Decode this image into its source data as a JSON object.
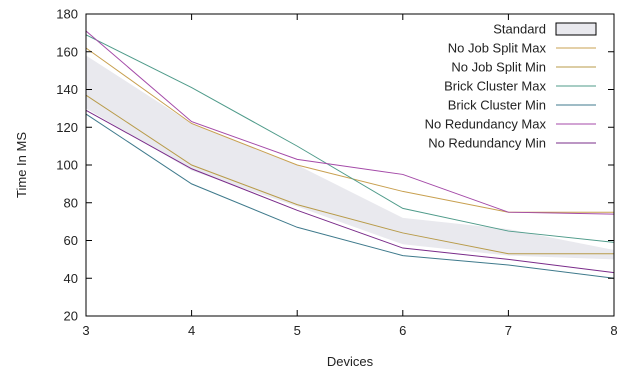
{
  "chart_data": {
    "type": "area",
    "xlabel": "Devices",
    "ylabel": "Time In MS",
    "x": [
      3,
      4,
      5,
      6,
      7,
      8
    ],
    "xlim": [
      3,
      8
    ],
    "ylim": [
      20,
      180
    ],
    "xticks": [
      3,
      4,
      5,
      6,
      7,
      8
    ],
    "yticks": [
      20,
      40,
      60,
      80,
      100,
      120,
      140,
      160,
      180
    ],
    "grid": false,
    "legend_position": "top-right",
    "band": {
      "name": "Standard",
      "upper": [
        158,
        122,
        100,
        72,
        66,
        55
      ],
      "lower": [
        130,
        97,
        78,
        58,
        52,
        50
      ],
      "color": "#e9e9ee"
    },
    "series": [
      {
        "name": "No Job Split Max",
        "color": "#c8a050",
        "values": [
          162,
          122,
          100,
          86,
          75,
          75
        ]
      },
      {
        "name": "No Job Split Min",
        "color": "#b89b4a",
        "values": [
          137,
          100,
          79,
          64,
          53,
          53
        ]
      },
      {
        "name": "Brick Cluster Max",
        "color": "#4f9b8a",
        "values": [
          169,
          141,
          110,
          77,
          65,
          59
        ]
      },
      {
        "name": "Brick Cluster Min",
        "color": "#3f7a8c",
        "values": [
          127,
          90,
          67,
          52,
          47,
          40
        ]
      },
      {
        "name": "No Redundancy Max",
        "color": "#a44aa8",
        "values": [
          171,
          123,
          103,
          95,
          75,
          74
        ]
      },
      {
        "name": "No Redundancy Min",
        "color": "#7a2c8a",
        "values": [
          129,
          98,
          76,
          56,
          50,
          43
        ]
      }
    ]
  }
}
